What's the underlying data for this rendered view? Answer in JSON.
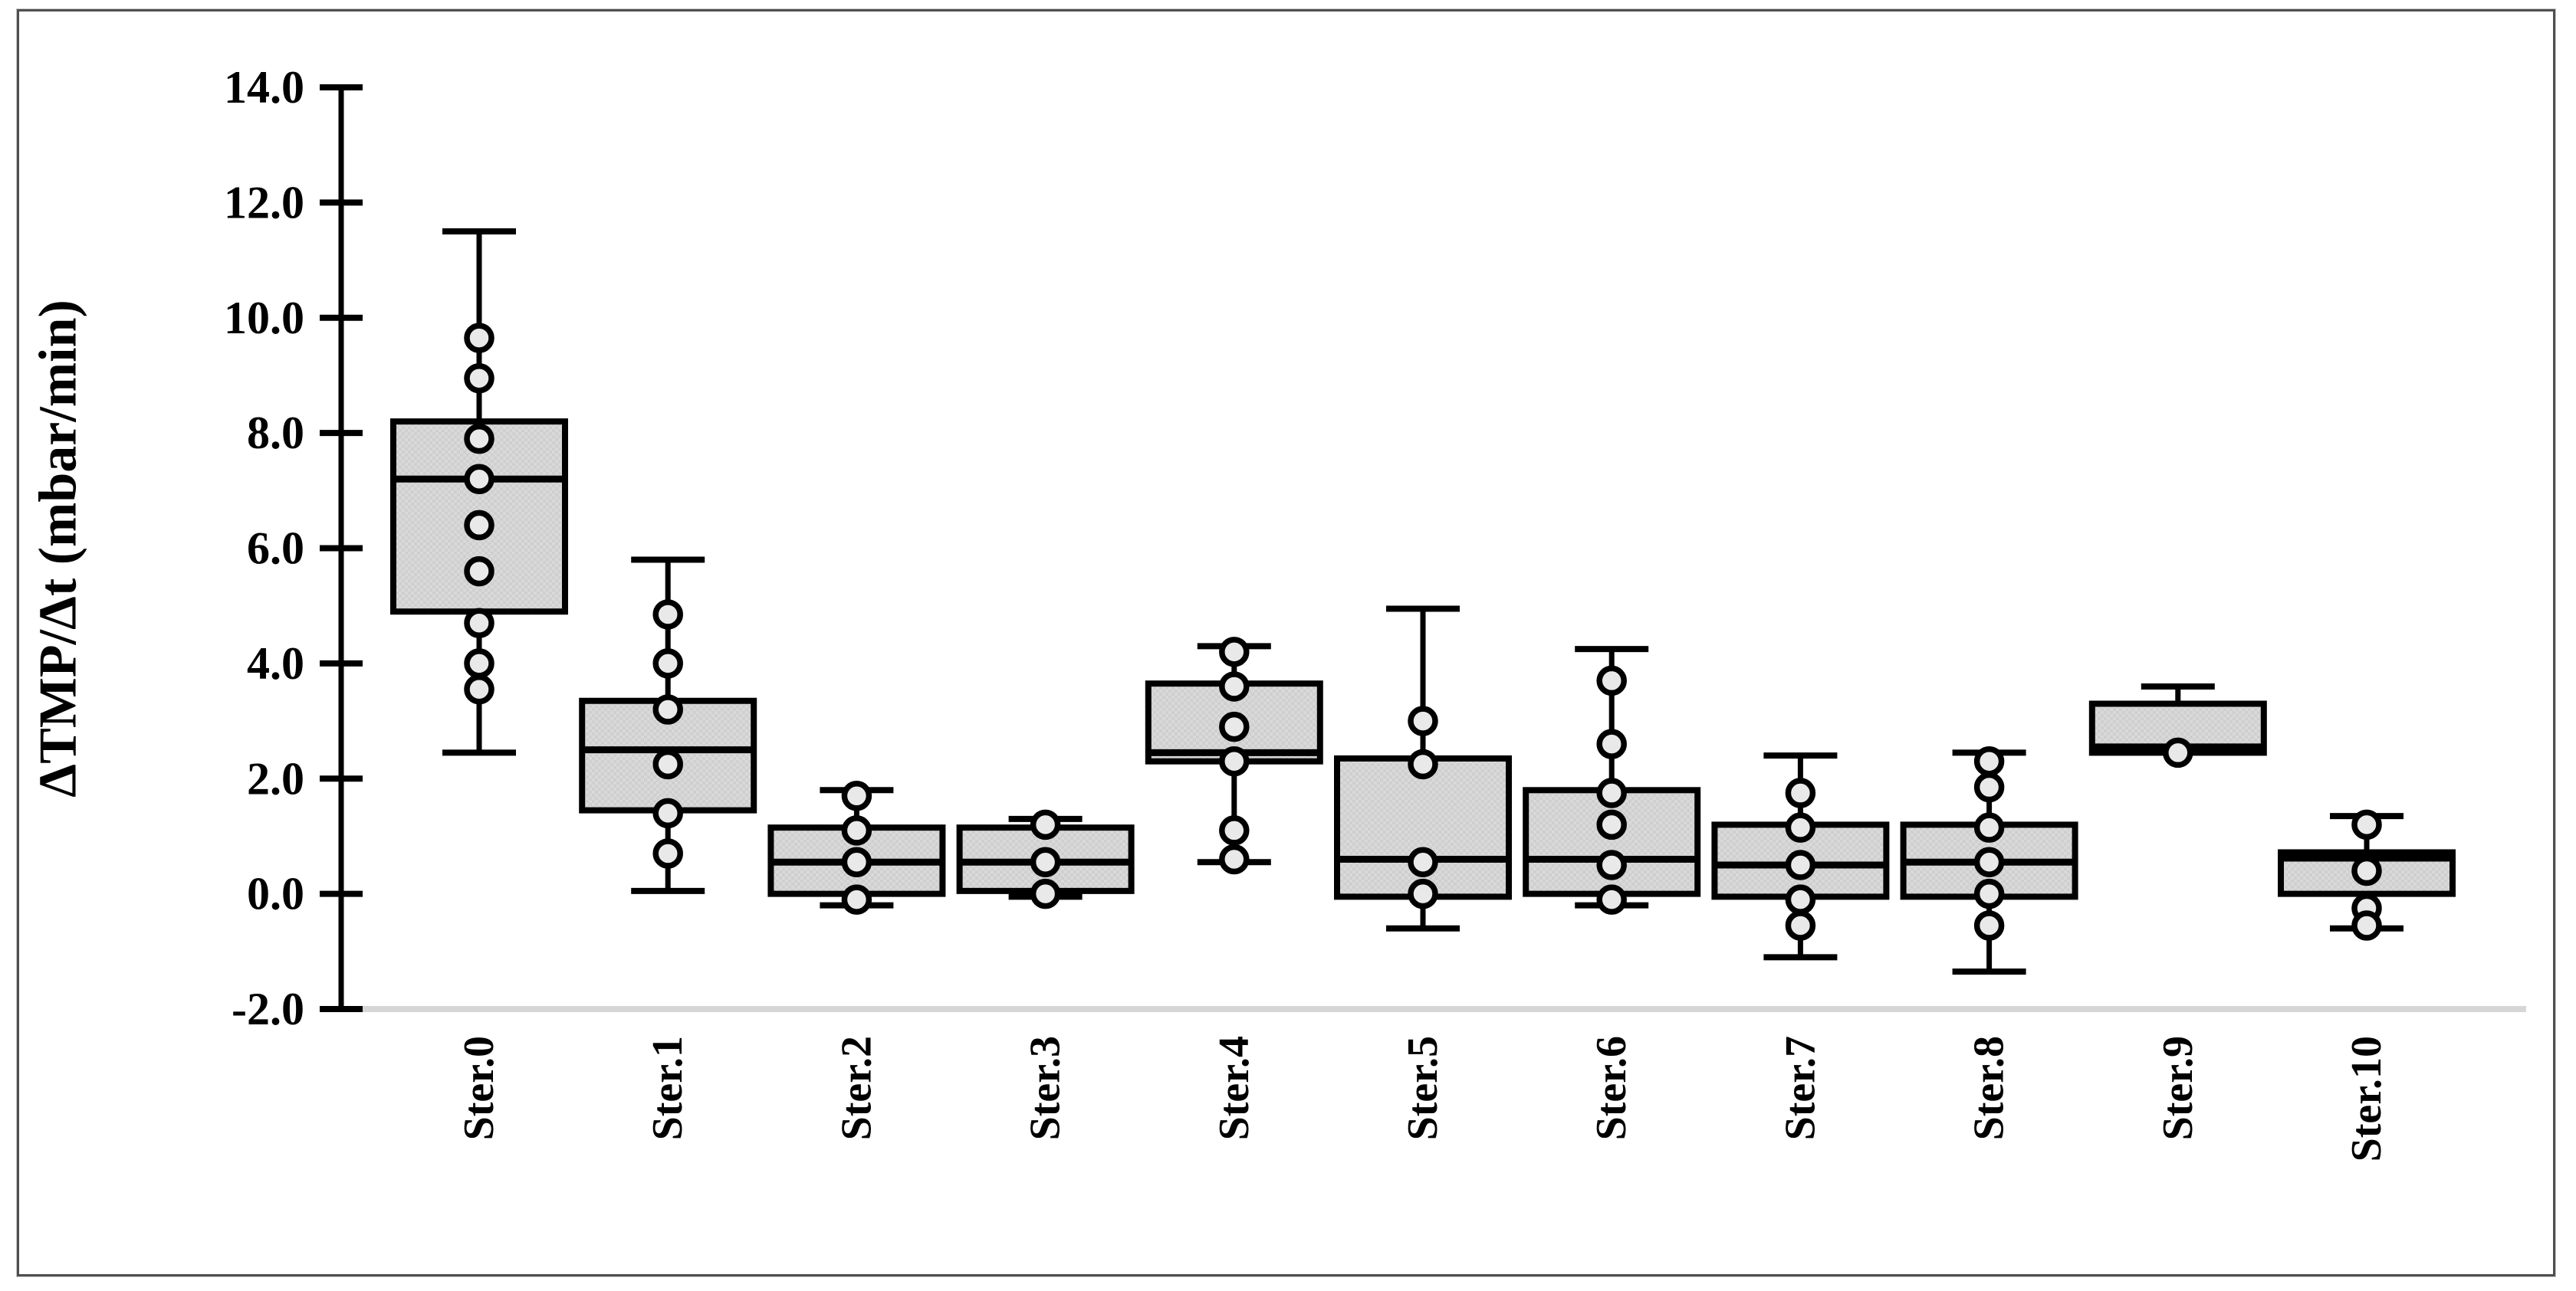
{
  "figure": {
    "background": "#ffffff",
    "frame_border_color": "#4f4f4f"
  },
  "chart_data": {
    "type": "boxplot",
    "title": "",
    "xlabel": "",
    "ylabel": "ΔTMP/Δt (mbar/min)",
    "ylim": [
      -2.0,
      14.0
    ],
    "ytick_step": 2.0,
    "ytick_values": [
      14.0,
      12.0,
      10.0,
      8.0,
      6.0,
      4.0,
      2.0,
      0.0,
      -2.0
    ],
    "ytick_labels": [
      "14.0",
      "12.0",
      "10.0",
      "8.0",
      "6.0",
      "4.0",
      "2.0",
      "0.0",
      "-2.0"
    ],
    "grid": false,
    "legend": "none",
    "baseline_at": -2.0,
    "colors": {
      "line": "#000000",
      "box_fill": "#d9d9d9",
      "box_fill_texture": "#c9c9c9",
      "point_fill": "#e9e9e9",
      "baseline": "#d6d6d6"
    },
    "categories": [
      "Ster.0",
      "Ster.1",
      "Ster.2",
      "Ster.3",
      "Ster.4",
      "Ster.5",
      "Ster.6",
      "Ster.7",
      "Ster.8",
      "Ster.9",
      "Ster.10"
    ],
    "series": [
      {
        "label": "Ster.0",
        "whisker_high": 11.5,
        "q3": 8.2,
        "median": 7.2,
        "q1": 4.9,
        "whisker_low": 2.45,
        "points": [
          9.65,
          8.95,
          7.9,
          7.2,
          6.4,
          5.6,
          4.7,
          4.0,
          3.55
        ]
      },
      {
        "label": "Ster.1",
        "whisker_high": 5.8,
        "q3": 3.35,
        "median": 2.5,
        "q1": 1.45,
        "whisker_low": 0.05,
        "points": [
          4.85,
          4.0,
          3.2,
          2.25,
          1.4,
          0.7
        ]
      },
      {
        "label": "Ster.2",
        "whisker_high": 1.8,
        "q3": 1.15,
        "median": 0.55,
        "q1": 0.0,
        "whisker_low": -0.2,
        "points": [
          1.7,
          1.1,
          0.55,
          -0.1
        ]
      },
      {
        "label": "Ster.3",
        "whisker_high": 1.3,
        "q3": 1.15,
        "median": 0.55,
        "q1": 0.05,
        "whisker_low": -0.05,
        "points": [
          1.2,
          0.55,
          0.0
        ]
      },
      {
        "label": "Ster.4",
        "whisker_high": 4.3,
        "q3": 3.65,
        "median": 2.45,
        "q1": 2.3,
        "whisker_low": 0.55,
        "points": [
          4.2,
          3.6,
          2.9,
          2.3,
          1.1,
          0.6
        ]
      },
      {
        "label": "Ster.5",
        "whisker_high": 4.95,
        "q3": 2.35,
        "median": 0.6,
        "q1": -0.05,
        "whisker_low": -0.6,
        "points": [
          3.0,
          2.25,
          0.55,
          0.0
        ]
      },
      {
        "label": "Ster.6",
        "whisker_high": 4.25,
        "q3": 1.8,
        "median": 0.6,
        "q1": 0.0,
        "whisker_low": -0.2,
        "points": [
          3.7,
          2.6,
          1.75,
          1.2,
          0.5,
          -0.1
        ]
      },
      {
        "label": "Ster.7",
        "whisker_high": 2.4,
        "q3": 1.2,
        "median": 0.5,
        "q1": -0.05,
        "whisker_low": -1.1,
        "points": [
          1.75,
          1.15,
          0.5,
          -0.1,
          -0.55
        ]
      },
      {
        "label": "Ster.8",
        "whisker_high": 2.45,
        "q3": 1.2,
        "median": 0.55,
        "q1": -0.05,
        "whisker_low": -1.35,
        "points": [
          2.3,
          1.85,
          1.15,
          0.55,
          0.0,
          -0.55
        ]
      },
      {
        "label": "Ster.9",
        "whisker_high": 3.6,
        "q3": 3.3,
        "median": 2.55,
        "q1": 2.45,
        "whisker_low": 2.45,
        "points": [
          2.45
        ]
      },
      {
        "label": "Ster.10",
        "whisker_high": 1.35,
        "q3": 0.72,
        "median": 0.62,
        "q1": 0.0,
        "whisker_low": -0.6,
        "points": [
          1.2,
          0.4,
          -0.25,
          -0.55
        ]
      }
    ]
  }
}
